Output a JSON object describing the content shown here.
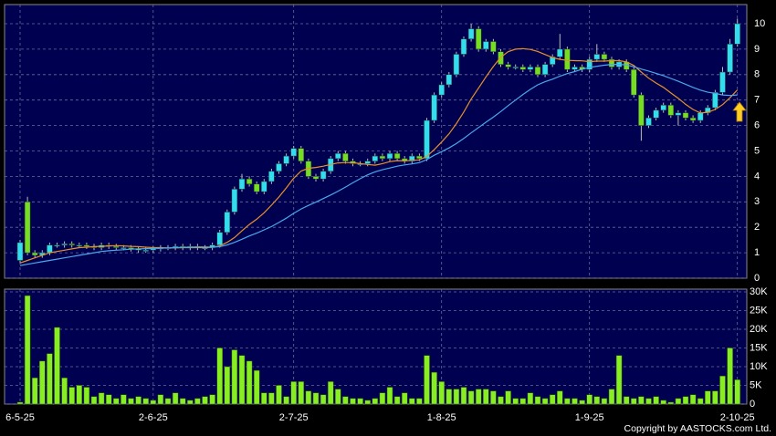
{
  "chart_data": [
    {
      "type": "candlestick",
      "categories": [
        "6-5-25",
        null,
        null,
        null,
        null,
        null,
        null,
        null,
        null,
        null,
        null,
        null,
        null,
        null,
        null,
        null,
        null,
        null,
        "2-6-25",
        null,
        null,
        null,
        null,
        null,
        null,
        null,
        null,
        null,
        null,
        null,
        null,
        null,
        null,
        null,
        null,
        null,
        null,
        "2-7-25",
        null,
        null,
        null,
        null,
        null,
        null,
        null,
        null,
        null,
        null,
        null,
        null,
        null,
        null,
        null,
        null,
        null,
        null,
        null,
        "1-8-25",
        null,
        null,
        null,
        null,
        null,
        null,
        null,
        null,
        null,
        null,
        null,
        null,
        null,
        null,
        null,
        null,
        null,
        null,
        null,
        "1-9-25",
        null,
        null,
        null,
        null,
        null,
        null,
        null,
        null,
        null,
        null,
        null,
        null,
        null,
        null,
        null,
        null,
        null,
        null,
        null,
        "2-10-25"
      ],
      "open": [
        0.7,
        3.0,
        1.0,
        0.9,
        1.0,
        1.3,
        1.3,
        1.35,
        1.3,
        1.3,
        1.25,
        1.2,
        1.3,
        1.25,
        1.2,
        1.2,
        1.15,
        1.1,
        1.1,
        1.15,
        1.2,
        1.2,
        1.25,
        1.2,
        1.25,
        1.2,
        1.2,
        1.3,
        1.8,
        2.6,
        3.5,
        3.9,
        3.7,
        3.4,
        3.8,
        4.2,
        4.5,
        4.8,
        5.1,
        4.6,
        4.0,
        3.9,
        4.2,
        4.7,
        4.9,
        4.6,
        4.5,
        4.5,
        4.6,
        4.8,
        4.7,
        4.9,
        4.7,
        4.6,
        4.8,
        4.7,
        6.2,
        7.2,
        7.6,
        8.0,
        8.8,
        9.4,
        9.8,
        9.0,
        9.3,
        8.9,
        8.4,
        8.3,
        8.3,
        8.2,
        8.3,
        8.0,
        8.4,
        8.7,
        9.0,
        8.2,
        8.3,
        8.2,
        8.6,
        8.8,
        8.6,
        8.3,
        8.5,
        8.2,
        7.2,
        6.0,
        6.3,
        6.6,
        6.8,
        6.4,
        6.5,
        6.3,
        6.2,
        6.5,
        6.7,
        7.3,
        8.1,
        9.2
      ],
      "high": [
        1.5,
        3.2,
        1.1,
        1.1,
        1.4,
        1.4,
        1.45,
        1.45,
        1.4,
        1.4,
        1.35,
        1.4,
        1.4,
        1.35,
        1.3,
        1.3,
        1.25,
        1.2,
        1.25,
        1.3,
        1.3,
        1.35,
        1.35,
        1.35,
        1.35,
        1.3,
        1.4,
        1.9,
        2.7,
        3.6,
        4.1,
        4.0,
        3.8,
        3.9,
        4.3,
        4.6,
        4.9,
        5.2,
        5.2,
        4.7,
        4.1,
        4.3,
        4.8,
        5.0,
        5.0,
        4.7,
        4.6,
        4.7,
        4.9,
        4.9,
        5.0,
        5.0,
        4.8,
        4.9,
        4.9,
        6.3,
        7.3,
        7.7,
        8.1,
        8.9,
        9.5,
        10.0,
        9.9,
        9.4,
        9.4,
        9.0,
        8.5,
        8.4,
        8.4,
        8.4,
        8.4,
        8.5,
        8.8,
        9.6,
        9.1,
        8.4,
        8.4,
        8.7,
        9.2,
        8.9,
        8.7,
        8.6,
        8.6,
        8.3,
        7.3,
        6.4,
        6.7,
        6.9,
        6.9,
        6.6,
        6.6,
        6.4,
        6.6,
        6.8,
        7.4,
        8.3,
        9.4,
        10.2
      ],
      "low": [
        0.6,
        0.9,
        0.8,
        0.8,
        0.9,
        1.2,
        1.2,
        1.2,
        1.2,
        1.15,
        1.1,
        1.1,
        1.15,
        1.1,
        1.1,
        1.05,
        1.0,
        1.0,
        1.0,
        1.05,
        1.1,
        1.1,
        1.1,
        1.1,
        1.1,
        1.1,
        1.1,
        1.2,
        1.7,
        2.5,
        3.4,
        3.6,
        3.3,
        3.3,
        3.7,
        4.1,
        4.4,
        4.7,
        4.5,
        3.9,
        3.8,
        3.8,
        4.1,
        4.6,
        4.5,
        4.4,
        4.4,
        4.4,
        4.5,
        4.6,
        4.6,
        4.6,
        4.5,
        4.5,
        4.6,
        4.6,
        6.1,
        7.1,
        7.5,
        7.9,
        8.7,
        9.3,
        8.9,
        8.9,
        8.8,
        8.3,
        8.2,
        8.2,
        8.1,
        8.1,
        7.9,
        7.9,
        8.3,
        8.6,
        8.1,
        8.1,
        8.1,
        8.1,
        8.5,
        8.5,
        8.2,
        8.2,
        8.1,
        7.1,
        5.4,
        5.9,
        6.2,
        6.5,
        6.3,
        6.0,
        6.2,
        6.1,
        6.1,
        6.4,
        6.6,
        7.2,
        8.0,
        9.1
      ],
      "close": [
        1.4,
        1.0,
        0.9,
        1.0,
        1.3,
        1.3,
        1.35,
        1.3,
        1.3,
        1.25,
        1.2,
        1.3,
        1.25,
        1.2,
        1.2,
        1.15,
        1.1,
        1.1,
        1.15,
        1.2,
        1.2,
        1.25,
        1.2,
        1.25,
        1.2,
        1.2,
        1.3,
        1.8,
        2.6,
        3.5,
        3.9,
        3.7,
        3.4,
        3.8,
        4.2,
        4.5,
        4.8,
        5.1,
        4.6,
        4.0,
        3.9,
        4.2,
        4.7,
        4.9,
        4.6,
        4.5,
        4.5,
        4.6,
        4.8,
        4.7,
        4.9,
        4.7,
        4.6,
        4.8,
        4.7,
        6.2,
        7.2,
        7.6,
        8.0,
        8.8,
        9.4,
        9.8,
        9.0,
        9.3,
        8.9,
        8.4,
        8.3,
        8.3,
        8.2,
        8.3,
        8.0,
        8.4,
        8.7,
        9.0,
        8.2,
        8.3,
        8.2,
        8.6,
        8.8,
        8.6,
        8.3,
        8.5,
        8.2,
        7.2,
        6.0,
        6.3,
        6.6,
        6.8,
        6.4,
        6.5,
        6.3,
        6.2,
        6.5,
        6.7,
        7.3,
        8.1,
        9.2,
        10.0
      ],
      "up_color": "#33ddf0",
      "down_color": "#77dd22",
      "series": [
        {
          "color": "#e8902a",
          "values": [
            0.6,
            0.7,
            0.8,
            0.9,
            1.0,
            1.05,
            1.1,
            1.15,
            1.2,
            1.22,
            1.24,
            1.25,
            1.27,
            1.28,
            1.27,
            1.25,
            1.24,
            1.22,
            1.2,
            1.2,
            1.19,
            1.19,
            1.2,
            1.2,
            1.2,
            1.2,
            1.21,
            1.27,
            1.41,
            1.6,
            1.86,
            2.11,
            2.32,
            2.57,
            2.87,
            3.19,
            3.55,
            3.93,
            4.21,
            4.32,
            4.35,
            4.4,
            4.47,
            4.53,
            4.54,
            4.54,
            4.5,
            4.47,
            4.44,
            4.5,
            4.58,
            4.62,
            4.61,
            4.63,
            4.65,
            4.79,
            5.05,
            5.35,
            5.67,
            6.07,
            6.53,
            7.04,
            7.47,
            7.91,
            8.32,
            8.68,
            8.9,
            9.0,
            9.02,
            8.99,
            8.91,
            8.79,
            8.67,
            8.6,
            8.56,
            8.55,
            8.54,
            8.51,
            8.53,
            8.53,
            8.55,
            8.55,
            8.5,
            8.36,
            8.1,
            7.86,
            7.67,
            7.5,
            7.28,
            7.07,
            6.83,
            6.63,
            6.49,
            6.52,
            6.63,
            6.82,
            7.09,
            7.4
          ]
        },
        {
          "color": "#4aa8ec",
          "values": [
            0.5,
            0.55,
            0.6,
            0.65,
            0.7,
            0.75,
            0.8,
            0.85,
            0.9,
            0.95,
            1.0,
            1.05,
            1.08,
            1.1,
            1.12,
            1.14,
            1.15,
            1.16,
            1.17,
            1.18,
            1.19,
            1.2,
            1.21,
            1.22,
            1.23,
            1.23,
            1.22,
            1.24,
            1.31,
            1.41,
            1.53,
            1.66,
            1.77,
            1.9,
            2.03,
            2.19,
            2.36,
            2.55,
            2.72,
            2.86,
            2.99,
            3.13,
            3.27,
            3.42,
            3.58,
            3.75,
            3.91,
            4.06,
            4.18,
            4.26,
            4.33,
            4.4,
            4.45,
            4.49,
            4.54,
            4.66,
            4.83,
            4.97,
            5.12,
            5.29,
            5.49,
            5.71,
            5.92,
            6.13,
            6.33,
            6.55,
            6.78,
            7.0,
            7.22,
            7.42,
            7.6,
            7.72,
            7.82,
            7.94,
            8.04,
            8.12,
            8.21,
            8.28,
            8.33,
            8.37,
            8.4,
            8.4,
            8.38,
            8.31,
            8.22,
            8.14,
            8.05,
            7.96,
            7.85,
            7.74,
            7.62,
            7.5,
            7.39,
            7.31,
            7.26,
            7.2,
            7.18,
            7.2
          ]
        }
      ],
      "ylim": [
        0,
        10
      ],
      "yticks": [
        0,
        1,
        2,
        3,
        4,
        5,
        6,
        7,
        8,
        9,
        10
      ],
      "grid": true
    },
    {
      "type": "bar",
      "color": "#88ee22",
      "values": [
        500,
        29000,
        7000,
        11500,
        13500,
        20500,
        7000,
        4500,
        5000,
        4500,
        2000,
        3000,
        2500,
        1500,
        2500,
        1500,
        2000,
        1500,
        1000,
        2500,
        1500,
        3000,
        1500,
        1000,
        1500,
        2000,
        2500,
        15000,
        10000,
        14500,
        13000,
        11500,
        9000,
        3000,
        3000,
        5000,
        2000,
        6000,
        6000,
        3500,
        3000,
        2500,
        6000,
        4000,
        2000,
        1500,
        1500,
        1000,
        1500,
        3000,
        4500,
        2000,
        3000,
        1500,
        1500,
        13000,
        8500,
        6000,
        4000,
        4000,
        4500,
        3500,
        4000,
        4000,
        3500,
        2000,
        3500,
        1500,
        1500,
        3000,
        2000,
        1500,
        2500,
        3500,
        1500,
        1500,
        1000,
        2500,
        2000,
        1500,
        4000,
        13000,
        2000,
        1500,
        2000,
        1500,
        2000,
        1000,
        500,
        1500,
        2000,
        2500,
        1500,
        3500,
        3500,
        7500,
        15000,
        6500
      ],
      "ylim": [
        0,
        30000
      ],
      "yticks": [
        {
          "value": 0,
          "label": "0"
        },
        {
          "value": 5000,
          "label": "5K"
        },
        {
          "value": 10000,
          "label": "10K"
        },
        {
          "value": 15000,
          "label": "15K"
        },
        {
          "value": 20000,
          "label": "20K"
        },
        {
          "value": 25000,
          "label": "25K"
        },
        {
          "value": 30000,
          "label": "30K"
        }
      ],
      "grid": true
    }
  ],
  "footer": "Copyright by AASTOCKS.com Ltd."
}
